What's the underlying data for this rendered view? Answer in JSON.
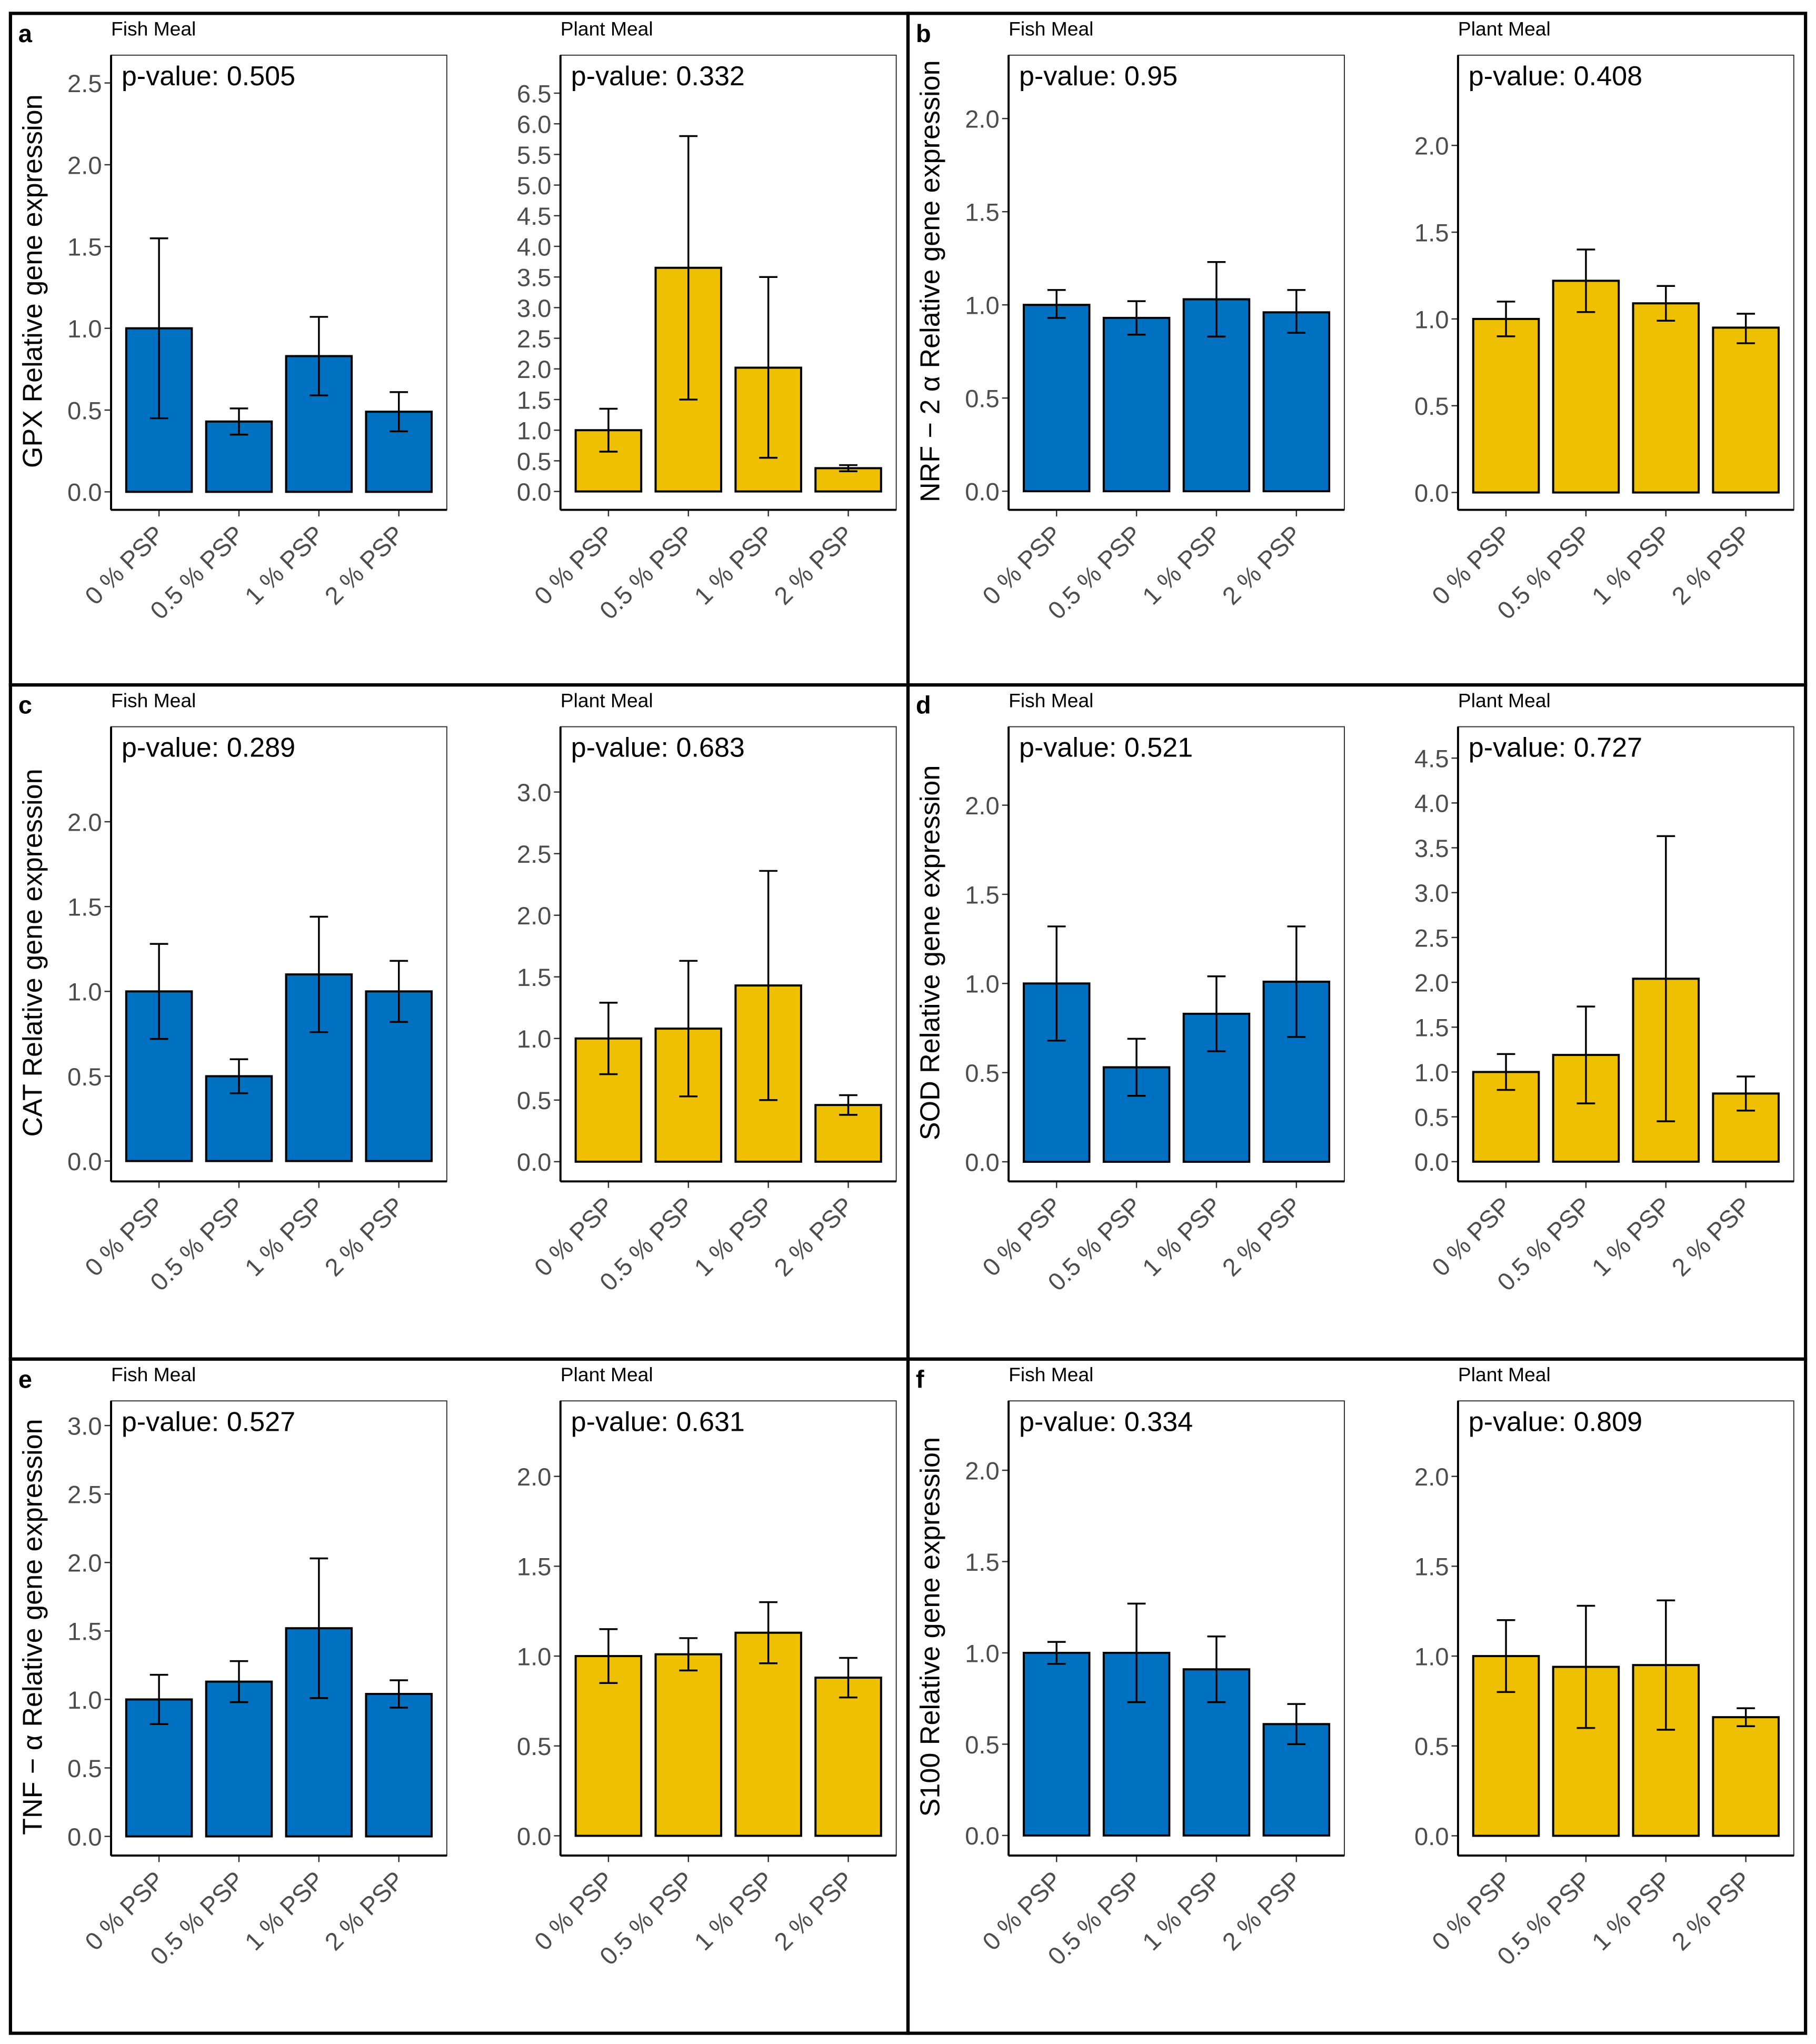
{
  "colors": {
    "fish": "#0070C0",
    "plant": "#EFC000",
    "outline": "#000000"
  },
  "chart_data": [
    {
      "letter": "a",
      "ylabel": "GPX Relative gene expression",
      "charts": [
        {
          "type": "bar",
          "title": "Fish Meal",
          "pvalue": "p-value: 0.505",
          "color_key": "fish",
          "categories": [
            "0 % PSP",
            "0.5 % PSP",
            "1 % PSP",
            "2 % PSP"
          ],
          "values": [
            1.0,
            0.43,
            0.83,
            0.49
          ],
          "err_low": [
            0.45,
            0.35,
            0.59,
            0.37
          ],
          "err_high": [
            1.55,
            0.51,
            1.07,
            0.61
          ],
          "yticks": [
            "0.0",
            "0.5",
            "1.0",
            "1.5",
            "2.0",
            "2.5"
          ],
          "ylim": [
            -0.11,
            2.67
          ]
        },
        {
          "type": "bar",
          "title": "Plant Meal",
          "pvalue": "p-value: 0.332",
          "color_key": "plant",
          "categories": [
            "0 % PSP",
            "0.5 % PSP",
            "1 % PSP",
            "2 % PSP"
          ],
          "values": [
            1.0,
            3.65,
            2.02,
            0.38
          ],
          "err_low": [
            0.65,
            1.5,
            0.55,
            0.33
          ],
          "err_high": [
            1.35,
            5.8,
            3.5,
            0.43
          ],
          "yticks": [
            "0.0",
            "0.5",
            "1.0",
            "1.5",
            "2.0",
            "2.5",
            "3.0",
            "3.5",
            "4.0",
            "4.5",
            "5.0",
            "5.5",
            "6.0",
            "6.5"
          ],
          "ylim": [
            -0.3,
            7.12
          ]
        }
      ]
    },
    {
      "letter": "b",
      "ylabel": "NRF − 2 α Relative gene expression",
      "charts": [
        {
          "type": "bar",
          "title": "Fish Meal",
          "pvalue": "p-value: 0.95",
          "color_key": "fish",
          "categories": [
            "0 % PSP",
            "0.5 % PSP",
            "1 % PSP",
            "2 % PSP"
          ],
          "values": [
            1.0,
            0.93,
            1.03,
            0.96
          ],
          "err_low": [
            0.93,
            0.84,
            0.83,
            0.85
          ],
          "err_high": [
            1.08,
            1.02,
            1.23,
            1.08
          ],
          "yticks": [
            "0.0",
            "0.5",
            "1.0",
            "1.5",
            "2.0"
          ],
          "ylim": [
            -0.1,
            2.34
          ]
        },
        {
          "type": "bar",
          "title": "Plant Meal",
          "pvalue": "p-value: 0.408",
          "color_key": "plant",
          "categories": [
            "0 % PSP",
            "0.5 % PSP",
            "1 % PSP",
            "2 % PSP"
          ],
          "values": [
            1.0,
            1.22,
            1.09,
            0.95
          ],
          "err_low": [
            0.9,
            1.04,
            0.99,
            0.86
          ],
          "err_high": [
            1.1,
            1.4,
            1.19,
            1.03
          ],
          "yticks": [
            "0.0",
            "0.5",
            "1.0",
            "1.5",
            "2.0"
          ],
          "ylim": [
            -0.1,
            2.52
          ]
        }
      ]
    },
    {
      "letter": "c",
      "ylabel": "CAT Relative gene expression",
      "charts": [
        {
          "type": "bar",
          "title": "Fish Meal",
          "pvalue": "p-value: 0.289",
          "color_key": "fish",
          "categories": [
            "0 % PSP",
            "0.5 % PSP",
            "1 % PSP",
            "2 % PSP"
          ],
          "values": [
            1.0,
            0.5,
            1.1,
            1.0
          ],
          "err_low": [
            0.72,
            0.4,
            0.76,
            0.82
          ],
          "err_high": [
            1.28,
            0.6,
            1.44,
            1.18
          ],
          "yticks": [
            "0.0",
            "0.5",
            "1.0",
            "1.5",
            "2.0"
          ],
          "ylim": [
            -0.12,
            2.56
          ]
        },
        {
          "type": "bar",
          "title": "Plant Meal",
          "pvalue": "p-value: 0.683",
          "color_key": "plant",
          "categories": [
            "0 % PSP",
            "0.5 % PSP",
            "1 % PSP",
            "2 % PSP"
          ],
          "values": [
            1.0,
            1.08,
            1.43,
            0.46
          ],
          "err_low": [
            0.71,
            0.53,
            0.5,
            0.38
          ],
          "err_high": [
            1.29,
            1.63,
            2.36,
            0.54
          ],
          "yticks": [
            "0.0",
            "0.5",
            "1.0",
            "1.5",
            "2.0",
            "2.5",
            "3.0"
          ],
          "ylim": [
            -0.16,
            3.53
          ]
        }
      ]
    },
    {
      "letter": "d",
      "ylabel": "SOD Relative gene expression",
      "charts": [
        {
          "type": "bar",
          "title": "Fish Meal",
          "pvalue": "p-value: 0.521",
          "color_key": "fish",
          "categories": [
            "0 % PSP",
            "0.5 % PSP",
            "1 % PSP",
            "2 % PSP"
          ],
          "values": [
            1.0,
            0.53,
            0.83,
            1.01
          ],
          "err_low": [
            0.68,
            0.37,
            0.62,
            0.7
          ],
          "err_high": [
            1.32,
            0.69,
            1.04,
            1.32
          ],
          "yticks": [
            "0.0",
            "0.5",
            "1.0",
            "1.5",
            "2.0"
          ],
          "ylim": [
            -0.11,
            2.44
          ]
        },
        {
          "type": "bar",
          "title": "Plant Meal",
          "pvalue": "p-value: 0.727",
          "color_key": "plant",
          "categories": [
            "0 % PSP",
            "0.5 % PSP",
            "1 % PSP",
            "2 % PSP"
          ],
          "values": [
            1.0,
            1.19,
            2.04,
            0.76
          ],
          "err_low": [
            0.8,
            0.65,
            0.45,
            0.57
          ],
          "err_high": [
            1.2,
            1.73,
            3.63,
            0.95
          ],
          "yticks": [
            "0.0",
            "0.5",
            "1.0",
            "1.5",
            "2.0",
            "2.5",
            "3.0",
            "3.5",
            "4.0",
            "4.5"
          ],
          "ylim": [
            -0.22,
            4.85
          ]
        }
      ]
    },
    {
      "letter": "e",
      "ylabel": "TNF − α Relative gene expression",
      "charts": [
        {
          "type": "bar",
          "title": "Fish Meal",
          "pvalue": "p-value: 0.527",
          "color_key": "fish",
          "categories": [
            "0 % PSP",
            "0.5 % PSP",
            "1 % PSP",
            "2 % PSP"
          ],
          "values": [
            1.0,
            1.13,
            1.52,
            1.04
          ],
          "err_low": [
            0.82,
            0.98,
            1.01,
            0.94
          ],
          "err_high": [
            1.18,
            1.28,
            2.03,
            1.14
          ],
          "yticks": [
            "0.0",
            "0.5",
            "1.0",
            "1.5",
            "2.0",
            "2.5",
            "3.0"
          ],
          "ylim": [
            -0.14,
            3.18
          ]
        },
        {
          "type": "bar",
          "title": "Plant Meal",
          "pvalue": "p-value: 0.631",
          "color_key": "plant",
          "categories": [
            "0 % PSP",
            "0.5 % PSP",
            "1 % PSP",
            "2 % PSP"
          ],
          "values": [
            1.0,
            1.01,
            1.13,
            0.88
          ],
          "err_low": [
            0.85,
            0.92,
            0.96,
            0.77
          ],
          "err_high": [
            1.15,
            1.1,
            1.3,
            0.99
          ],
          "yticks": [
            "0.0",
            "0.5",
            "1.0",
            "1.5",
            "2.0"
          ],
          "ylim": [
            -0.11,
            2.42
          ]
        }
      ]
    },
    {
      "letter": "f",
      "ylabel": "S100 Relative gene expression",
      "charts": [
        {
          "type": "bar",
          "title": "Fish Meal",
          "pvalue": "p-value: 0.334",
          "color_key": "fish",
          "categories": [
            "0 % PSP",
            "0.5 % PSP",
            "1 % PSP",
            "2 % PSP"
          ],
          "values": [
            1.0,
            1.0,
            0.91,
            0.61
          ],
          "err_low": [
            0.94,
            0.73,
            0.73,
            0.5
          ],
          "err_high": [
            1.06,
            1.27,
            1.09,
            0.72
          ],
          "yticks": [
            "0.0",
            "0.5",
            "1.0",
            "1.5",
            "2.0"
          ],
          "ylim": [
            -0.11,
            2.38
          ]
        },
        {
          "type": "bar",
          "title": "Plant Meal",
          "pvalue": "p-value: 0.809",
          "color_key": "plant",
          "categories": [
            "0 % PSP",
            "0.5 % PSP",
            "1 % PSP",
            "2 % PSP"
          ],
          "values": [
            1.0,
            0.94,
            0.95,
            0.66
          ],
          "err_low": [
            0.8,
            0.6,
            0.59,
            0.61
          ],
          "err_high": [
            1.2,
            1.28,
            1.31,
            0.71
          ],
          "yticks": [
            "0.0",
            "0.5",
            "1.0",
            "1.5",
            "2.0"
          ],
          "ylim": [
            -0.11,
            2.42
          ]
        }
      ]
    }
  ]
}
